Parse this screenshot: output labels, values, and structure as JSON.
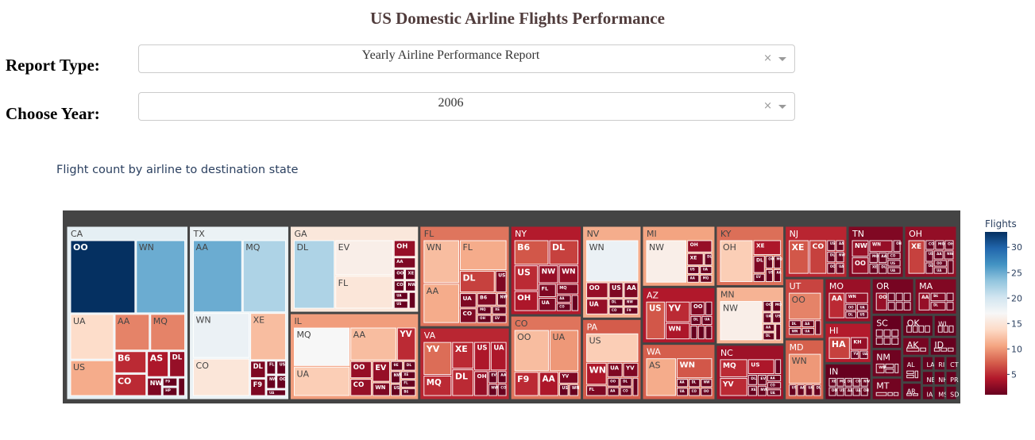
{
  "header": {
    "title": "US Domestic Airline Flights Performance"
  },
  "controls": {
    "report_type": {
      "label": "Report Type:",
      "value": "Yearly Airline Performance Report",
      "clear": "×"
    },
    "year": {
      "label": "Choose Year:",
      "value": "2006",
      "clear": "×"
    }
  },
  "chart_data": {
    "type": "treemap",
    "title": "Flight count by airline to destination state",
    "value_label": "Flights",
    "colorscale": "RdBu",
    "color_range": [
      1,
      33
    ],
    "colorbar_ticks": [
      5,
      10,
      15,
      20,
      25,
      30
    ],
    "states": [
      {
        "name": "CA",
        "airlines": [
          [
            "OO",
            33
          ],
          [
            "WN",
            25
          ],
          [
            "UA",
            14
          ],
          [
            "US",
            11
          ],
          [
            "AA",
            9
          ],
          [
            "MQ",
            9
          ],
          [
            "B6",
            5
          ],
          [
            "CO",
            5
          ],
          [
            "AS",
            4
          ],
          [
            "DL",
            3
          ],
          [
            "NW",
            2
          ],
          [
            "F9",
            1
          ],
          [
            "HP",
            1
          ],
          [
            "FL",
            1
          ]
        ]
      },
      {
        "name": "TX",
        "airlines": [
          [
            "AA",
            25
          ],
          [
            "MQ",
            22
          ],
          [
            "WN",
            18
          ],
          [
            "XE",
            12
          ],
          [
            "CO",
            15
          ],
          [
            "DL",
            2
          ],
          [
            "F9",
            2
          ],
          [
            "FL",
            1
          ],
          [
            "US",
            1
          ],
          [
            "NW",
            1
          ],
          [
            "OO",
            1
          ],
          [
            "UA",
            1
          ]
        ]
      },
      {
        "name": "GA",
        "airlines": [
          [
            "DL",
            22
          ],
          [
            "EV",
            16
          ],
          [
            "FL",
            15
          ],
          [
            "OH",
            3
          ],
          [
            "AA",
            2
          ],
          [
            "OO",
            1
          ],
          [
            "XE",
            1
          ],
          [
            "CO",
            1
          ],
          [
            "NW",
            1
          ],
          [
            "UA",
            1
          ],
          [
            "US",
            1
          ],
          [
            "MQ",
            1
          ]
        ]
      },
      {
        "name": "IL",
        "airlines": [
          [
            "MQ",
            17
          ],
          [
            "AA",
            12
          ],
          [
            "YV",
            5
          ],
          [
            "UA",
            13
          ],
          [
            "OO",
            3
          ],
          [
            "CO",
            3
          ],
          [
            "EV",
            3
          ],
          [
            "WN",
            2
          ],
          [
            "9E",
            1
          ],
          [
            "DL",
            1
          ],
          [
            "NW",
            1
          ],
          [
            "US",
            1
          ],
          [
            "XE",
            1
          ],
          [
            "FL",
            1
          ],
          [
            "B6",
            1
          ]
        ]
      },
      {
        "name": "FL",
        "airlines": [
          [
            "AA",
            11
          ],
          [
            "WN",
            12
          ],
          [
            "FL",
            11
          ],
          [
            "DL",
            6
          ],
          [
            "US",
            2
          ],
          [
            "UA",
            2
          ],
          [
            "CO",
            2
          ],
          [
            "B6",
            2
          ],
          [
            "NW",
            1
          ],
          [
            "MQ",
            1
          ],
          [
            "OH",
            1
          ],
          [
            "XE",
            1
          ],
          [
            "EV",
            1
          ]
        ]
      },
      {
        "name": "VA",
        "airlines": [
          [
            "YV",
            8
          ],
          [
            "MQ",
            5
          ],
          [
            "XE",
            5
          ],
          [
            "DL",
            5
          ],
          [
            "OH",
            3
          ],
          [
            "US",
            4
          ],
          [
            "UA",
            4
          ],
          [
            "EV",
            1
          ],
          [
            "AA",
            1
          ],
          [
            "NW",
            1
          ],
          [
            "CO",
            1
          ]
        ]
      },
      {
        "name": "NY",
        "airlines": [
          [
            "B6",
            7
          ],
          [
            "DL",
            6
          ],
          [
            "US",
            5
          ],
          [
            "NW",
            3
          ],
          [
            "WN",
            3
          ],
          [
            "OH",
            4
          ],
          [
            "FL",
            2
          ],
          [
            "UA",
            2
          ],
          [
            "MQ",
            2
          ],
          [
            "AA",
            1
          ],
          [
            "CO",
            1
          ],
          [
            "XE",
            1
          ]
        ]
      },
      {
        "name": "CO",
        "airlines": [
          [
            "OO",
            12
          ],
          [
            "UA",
            10
          ],
          [
            "F9",
            5
          ],
          [
            "AA",
            4
          ],
          [
            "YV",
            2
          ],
          [
            "US",
            1
          ],
          [
            "WN",
            1
          ]
        ]
      },
      {
        "name": "PA",
        "airlines": [
          [
            "US",
            13
          ],
          [
            "WN",
            4
          ],
          [
            "FL",
            2
          ],
          [
            "UA",
            2
          ],
          [
            "YV",
            2
          ],
          [
            "OO",
            1
          ],
          [
            "AA",
            1
          ],
          [
            "DL",
            1
          ],
          [
            "CO",
            1
          ],
          [
            "NW",
            1
          ]
        ]
      },
      {
        "name": "NV",
        "airlines": [
          [
            "WN",
            18
          ],
          [
            "OO",
            3
          ],
          [
            "UA",
            3
          ],
          [
            "US",
            2
          ],
          [
            "AA",
            2
          ],
          [
            "DL",
            1
          ],
          [
            "CO",
            1
          ],
          [
            "NW",
            1
          ],
          [
            "F9",
            1
          ]
        ]
      },
      {
        "name": "AZ",
        "airlines": [
          [
            "US",
            7
          ],
          [
            "WN",
            4
          ],
          [
            "YV",
            5
          ],
          [
            "OO",
            2
          ],
          [
            "AA",
            1
          ],
          [
            "DL",
            1
          ],
          [
            "UA",
            1
          ],
          [
            "NW",
            1
          ],
          [
            "F9",
            1
          ],
          [
            "CO",
            1
          ]
        ]
      },
      {
        "name": "WA",
        "airlines": [
          [
            "AS",
            11
          ],
          [
            "WN",
            7
          ],
          [
            "AA",
            1
          ],
          [
            "UA",
            1
          ],
          [
            "DL",
            1
          ],
          [
            "CO",
            1
          ],
          [
            "NW",
            1
          ],
          [
            "OO",
            1
          ]
        ]
      },
      {
        "name": "MI",
        "airlines": [
          [
            "NW",
            16
          ],
          [
            "OH",
            3
          ],
          [
            "DL",
            1
          ],
          [
            "XE",
            2
          ],
          [
            "US",
            1
          ],
          [
            "AA",
            1
          ],
          [
            "UA",
            1
          ],
          [
            "MQ",
            1
          ]
        ]
      },
      {
        "name": "NC",
        "airlines": [
          [
            "MQ",
            5
          ],
          [
            "YV",
            5
          ],
          [
            "US",
            4
          ],
          [
            "OH",
            1
          ],
          [
            "DL",
            1
          ],
          [
            "XE",
            1
          ],
          [
            "EV",
            1
          ],
          [
            "NW",
            1
          ],
          [
            "AA",
            1
          ],
          [
            "CO",
            1
          ],
          [
            "UA",
            1
          ]
        ]
      },
      {
        "name": "TN",
        "airlines": [
          [
            "NW",
            3
          ],
          [
            "OO",
            3
          ],
          [
            "WN",
            3
          ],
          [
            "OH",
            1
          ],
          [
            "MQ",
            1
          ],
          [
            "XE",
            1
          ],
          [
            "AA",
            1
          ],
          [
            "DL",
            1
          ],
          [
            "CO",
            1
          ],
          [
            "US",
            1
          ],
          [
            "UA",
            1
          ]
        ]
      },
      {
        "name": "KY",
        "airlines": [
          [
            "OH",
            13
          ],
          [
            "XE",
            4
          ],
          [
            "DL",
            2
          ],
          [
            "EV",
            1
          ],
          [
            "OO",
            1
          ],
          [
            "MQ",
            1
          ],
          [
            "US",
            1
          ],
          [
            "AA",
            1
          ]
        ]
      },
      {
        "name": "NJ",
        "airlines": [
          [
            "XE",
            7
          ],
          [
            "CO",
            6
          ],
          [
            "US",
            1
          ],
          [
            "AA",
            1
          ],
          [
            "DL",
            1
          ],
          [
            "NW",
            1
          ],
          [
            "OO",
            1
          ],
          [
            "UA",
            1
          ]
        ]
      },
      {
        "name": "OH",
        "airlines": [
          [
            "XE",
            6
          ],
          [
            "CO",
            1
          ],
          [
            "MQ",
            1
          ],
          [
            "OH",
            1
          ],
          [
            "US",
            1
          ],
          [
            "DL",
            1
          ],
          [
            "AA",
            1
          ],
          [
            "NW",
            1
          ],
          [
            "OO",
            1
          ],
          [
            "UA",
            1
          ],
          [
            "YV",
            1
          ]
        ]
      },
      {
        "name": "HI",
        "airlines": [
          [
            "HA",
            6
          ],
          [
            "KH",
            3
          ],
          [
            "YV",
            1
          ],
          [
            "UA",
            1
          ]
        ]
      },
      {
        "name": "MN",
        "airlines": [
          [
            "NW",
            16
          ],
          [
            "OO",
            1
          ],
          [
            "MQ",
            1
          ],
          [
            "UA",
            1
          ],
          [
            "US",
            1
          ],
          [
            "AA",
            1
          ],
          [
            "DL",
            1
          ],
          [
            "CO",
            1
          ]
        ]
      },
      {
        "name": "UT",
        "airlines": [
          [
            "OO",
            9
          ],
          [
            "DL",
            1
          ],
          [
            "WN",
            1
          ],
          [
            "AA",
            1
          ],
          [
            "UA",
            1
          ],
          [
            "US",
            1
          ]
        ]
      },
      {
        "name": "MO",
        "airlines": [
          [
            "AA",
            5
          ],
          [
            "WN",
            3
          ],
          [
            "OO",
            1
          ],
          [
            "DL",
            1
          ],
          [
            "UA",
            1
          ],
          [
            "US",
            1
          ]
        ]
      },
      {
        "name": "OR",
        "airlines": [
          [
            "OO",
            3
          ],
          [
            "AS",
            1
          ],
          [
            "UA",
            1
          ],
          [
            "DL",
            1
          ],
          [
            "WN",
            1
          ],
          [
            "NW",
            1
          ],
          [
            "AA",
            1
          ]
        ]
      },
      {
        "name": "IN",
        "airlines": [
          [
            "XE",
            1
          ],
          [
            "OO",
            1
          ],
          [
            "MQ",
            1
          ],
          [
            "US",
            1
          ],
          [
            "DL",
            1
          ],
          [
            "AA",
            1
          ],
          [
            "CO",
            1
          ],
          [
            "NW",
            1
          ],
          [
            "UA",
            1
          ],
          [
            "OH",
            1
          ]
        ]
      },
      {
        "name": "MA",
        "airlines": [
          [
            "AA",
            3
          ],
          [
            "B6",
            2
          ],
          [
            "DL",
            2
          ],
          [
            "US",
            1
          ],
          [
            "UA",
            1
          ]
        ]
      },
      {
        "name": "MD",
        "airlines": [
          [
            "WN",
            10
          ],
          [
            "US",
            1
          ],
          [
            "AA",
            1
          ],
          [
            "UA",
            1
          ],
          [
            "DL",
            1
          ]
        ]
      },
      {
        "name": "NM",
        "airlines": [
          [
            "WN",
            2
          ],
          [
            "OO",
            1
          ],
          [
            "AA",
            1
          ],
          [
            "UA",
            1
          ]
        ]
      },
      {
        "name": "MT",
        "airlines": [
          [
            "OO",
            2
          ],
          [
            "NW",
            1
          ],
          [
            "DL",
            1
          ]
        ]
      },
      {
        "name": "OK",
        "airlines": [
          [
            "AA",
            1
          ],
          [
            "WN",
            1
          ],
          [
            "OO",
            1
          ],
          [
            "MQ",
            1
          ]
        ]
      },
      {
        "name": "WI",
        "airlines": [
          [
            "YX",
            1
          ],
          [
            "MQ",
            1
          ],
          [
            "NW",
            1
          ]
        ]
      },
      {
        "name": "SC",
        "airlines": [
          [
            "OH",
            1
          ],
          [
            "XE",
            1
          ],
          [
            "MQ",
            1
          ],
          [
            "DL",
            1
          ],
          [
            "US",
            1
          ],
          [
            "EV",
            1
          ]
        ]
      },
      {
        "name": "AK",
        "airlines": [
          [
            "AS",
            2
          ],
          [
            "NW",
            1
          ]
        ]
      },
      {
        "name": "ID",
        "airlines": [
          [
            "OO",
            1
          ],
          [
            "WN",
            1
          ],
          [
            "AS",
            1
          ]
        ]
      },
      {
        "name": "AL",
        "airlines": [
          [
            "DL",
            1
          ],
          [
            "XE",
            1
          ],
          [
            "OH",
            1
          ]
        ]
      },
      {
        "name": "LA",
        "airlines": [
          [
            "WN",
            1
          ]
        ]
      },
      {
        "name": "RI",
        "airlines": [
          [
            "US",
            1
          ]
        ]
      },
      {
        "name": "CT",
        "airlines": [
          [
            "US",
            1
          ]
        ]
      },
      {
        "name": "NE",
        "airlines": [
          [
            "WN",
            1
          ]
        ]
      },
      {
        "name": "IA",
        "airlines": [
          [
            "OO",
            1
          ]
        ]
      },
      {
        "name": "NH",
        "airlines": [
          [
            "US",
            1
          ]
        ]
      },
      {
        "name": "AR",
        "airlines": [
          [
            "AA",
            1
          ],
          [
            "MQ",
            1
          ]
        ]
      },
      {
        "name": "PR",
        "airlines": [
          [
            "AA",
            1
          ]
        ]
      },
      {
        "name": "MS",
        "airlines": [
          [
            "DL",
            1
          ]
        ]
      },
      {
        "name": "SD",
        "airlines": [
          [
            "OO",
            1
          ]
        ]
      }
    ]
  }
}
